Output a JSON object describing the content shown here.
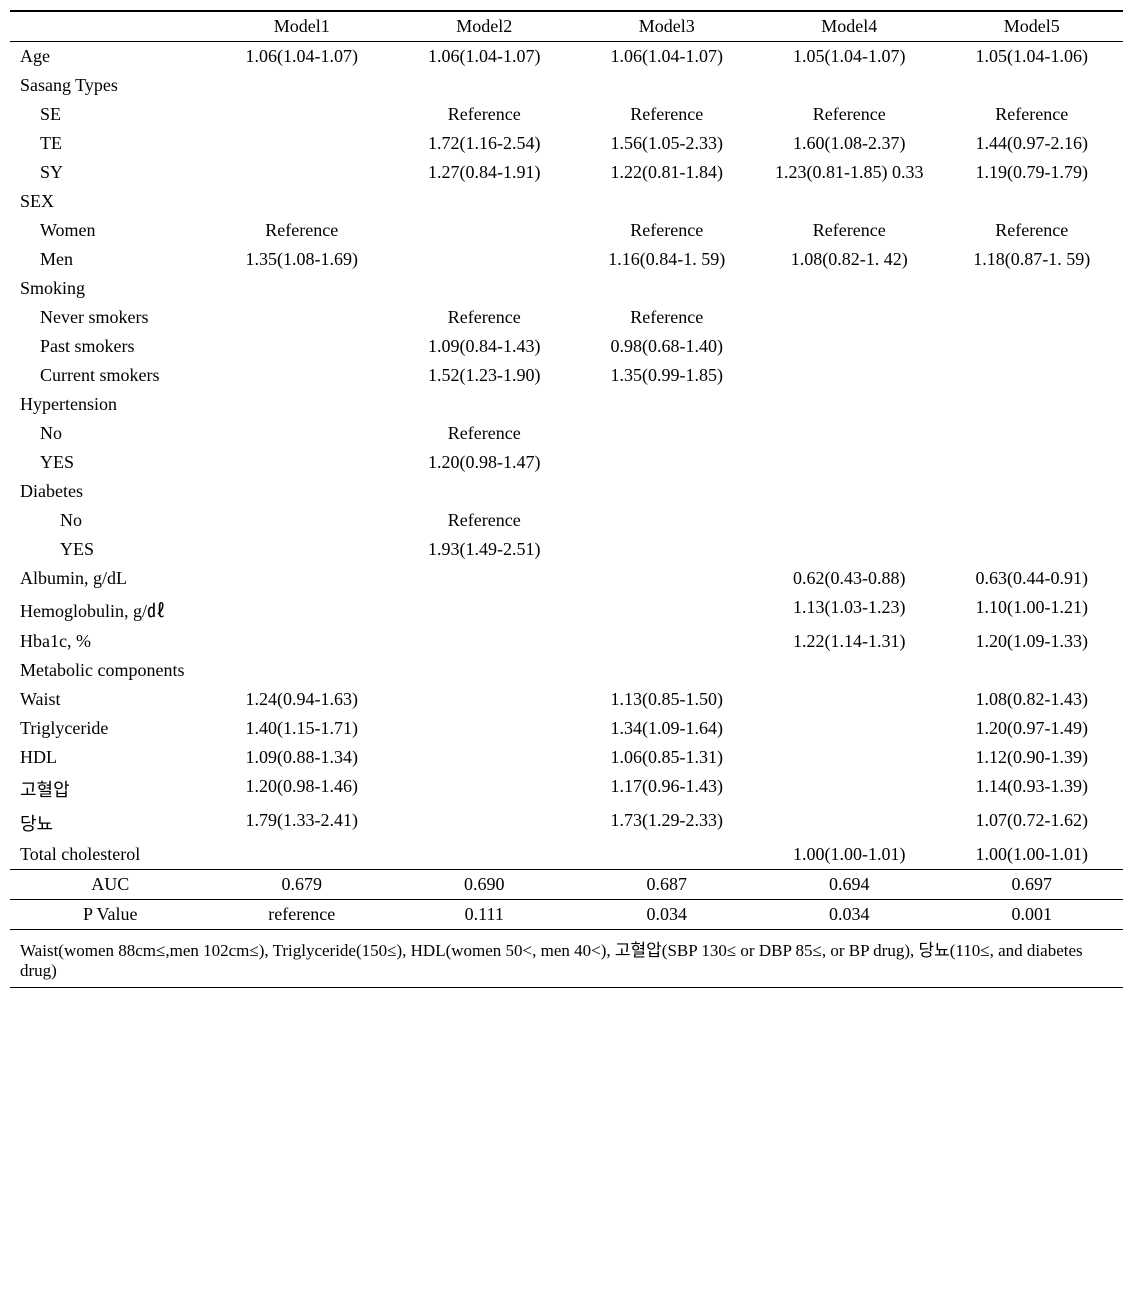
{
  "headers": {
    "m1": "Model1",
    "m2": "Model2",
    "m3": "Model3",
    "m4": "Model4",
    "m5": "Model5"
  },
  "rows": {
    "age": {
      "label": "Age",
      "m1": "1.06(1.04-1.07)",
      "m2": "1.06(1.04-1.07)",
      "m3": "1.06(1.04-1.07)",
      "m4": "1.05(1.04-1.07)",
      "m5": "1.05(1.04-1.06)"
    },
    "sasang": {
      "label": "Sasang Types"
    },
    "se": {
      "label": "SE",
      "m2": "Reference",
      "m3": "Reference",
      "m4": "Reference",
      "m5": "Reference"
    },
    "te": {
      "label": "TE",
      "m2": "1.72(1.16-2.54)",
      "m3": "1.56(1.05-2.33)",
      "m4": "1.60(1.08-2.37)",
      "m5": "1.44(0.97-2.16)"
    },
    "sy": {
      "label": "SY",
      "m2": "1.27(0.84-1.91)",
      "m チ": "",
      "m3": "1.22(0.81-1.84)",
      "m4": "1.23(0.81-1.85) 0.33",
      "m5": "1.19(0.79-1.79)"
    },
    "sex": {
      "label": "SEX"
    },
    "women": {
      "label": "Women",
      "m1": "Reference",
      "m3": "Reference",
      "m4": "Reference",
      "m5": "Reference"
    },
    "men": {
      "label": "Men",
      "m1": "1.35(1.08-1.69)",
      "m3": "1.16(0.84-1. 59)",
      "m4": "1.08(0.82-1. 42)",
      "m5": "1.18(0.87-1. 59)"
    },
    "smoking": {
      "label": "Smoking"
    },
    "never": {
      "label": "Never smokers",
      "m2": "Reference",
      "m3": "Reference"
    },
    "past": {
      "label": "Past smokers",
      "m2": "1.09(0.84-1.43)",
      "m3": "0.98(0.68-1.40)"
    },
    "current": {
      "label": "Current smokers",
      "m2": "1.52(1.23-1.90)",
      "m3": "1.35(0.99-1.85)"
    },
    "hyper": {
      "label": "Hypertension"
    },
    "hno": {
      "label": "No",
      "m2": "Reference"
    },
    "hyes": {
      "label": "YES",
      "m2": "1.20(0.98-1.47)"
    },
    "diab": {
      "label": "Diabetes"
    },
    "dno": {
      "label": "No",
      "m2": "Reference"
    },
    "dyes": {
      "label": "YES",
      "m2": "1.93(1.49-2.51)"
    },
    "alb": {
      "label": "Albumin, g/dL",
      "m4": "0.62(0.43-0.88)",
      "m5": "0.63(0.44-0.91)"
    },
    "hemo": {
      "label": "Hemoglobulin, g/㎗",
      "m4": "1.13(1.03-1.23)",
      "m5": "1.10(1.00-1.21)"
    },
    "hba1c": {
      "label": "Hba1c, %",
      "m4": "1.22(1.14-1.31)",
      "m5": "1.20(1.09-1.33)"
    },
    "metab": {
      "label": "Metabolic components"
    },
    "waist": {
      "label": "Waist",
      "m1": "1.24(0.94-1.63)",
      "m3": "1.13(0.85-1.50)",
      "m5": "1.08(0.82-1.43)"
    },
    "trig": {
      "label": "Triglyceride",
      "m1": "1.40(1.15-1.71)",
      "m3": "1.34(1.09-1.64)",
      "m5": "1.20(0.97-1.49)"
    },
    "hdl": {
      "label": "HDL",
      "m1": "1.09(0.88-1.34)",
      "m3": "1.06(0.85-1.31)",
      "m5": "1.12(0.90-1.39)"
    },
    "bp_k": {
      "label": "고혈압",
      "m1": "1.20(0.98-1.46)",
      "m3": "1.17(0.96-1.43)",
      "m5": "1.14(0.93-1.39)"
    },
    "dm_k": {
      "label": "당뇨",
      "m1": "1.79(1.33-2.41)",
      "m3": "1.73(1.29-2.33)",
      "m5": "1.07(0.72-1.62)"
    },
    "tchol": {
      "label": "Total cholesterol",
      "m4": "1.00(1.00-1.01)",
      "m5": "1.00(1.00-1.01)"
    },
    "auc": {
      "label": "AUC",
      "m1": "0.679",
      "m2": "0.690",
      "m3": "0.687",
      "m4": "0.694",
      "m5": "0.697"
    },
    "pval": {
      "label": "P Value",
      "m1": "reference",
      "m2": "0.111",
      "m3": "0.034",
      "m4": "0.034",
      "m5": "0.001"
    }
  },
  "footnote": "Waist(women 88cm≤,men 102cm≤), Triglyceride(150≤), HDL(women 50<, men 40<), 고혈압(SBP 130≤ or DBP 85≤, or BP drug), 당뇨(110≤, and diabetes drug)"
}
